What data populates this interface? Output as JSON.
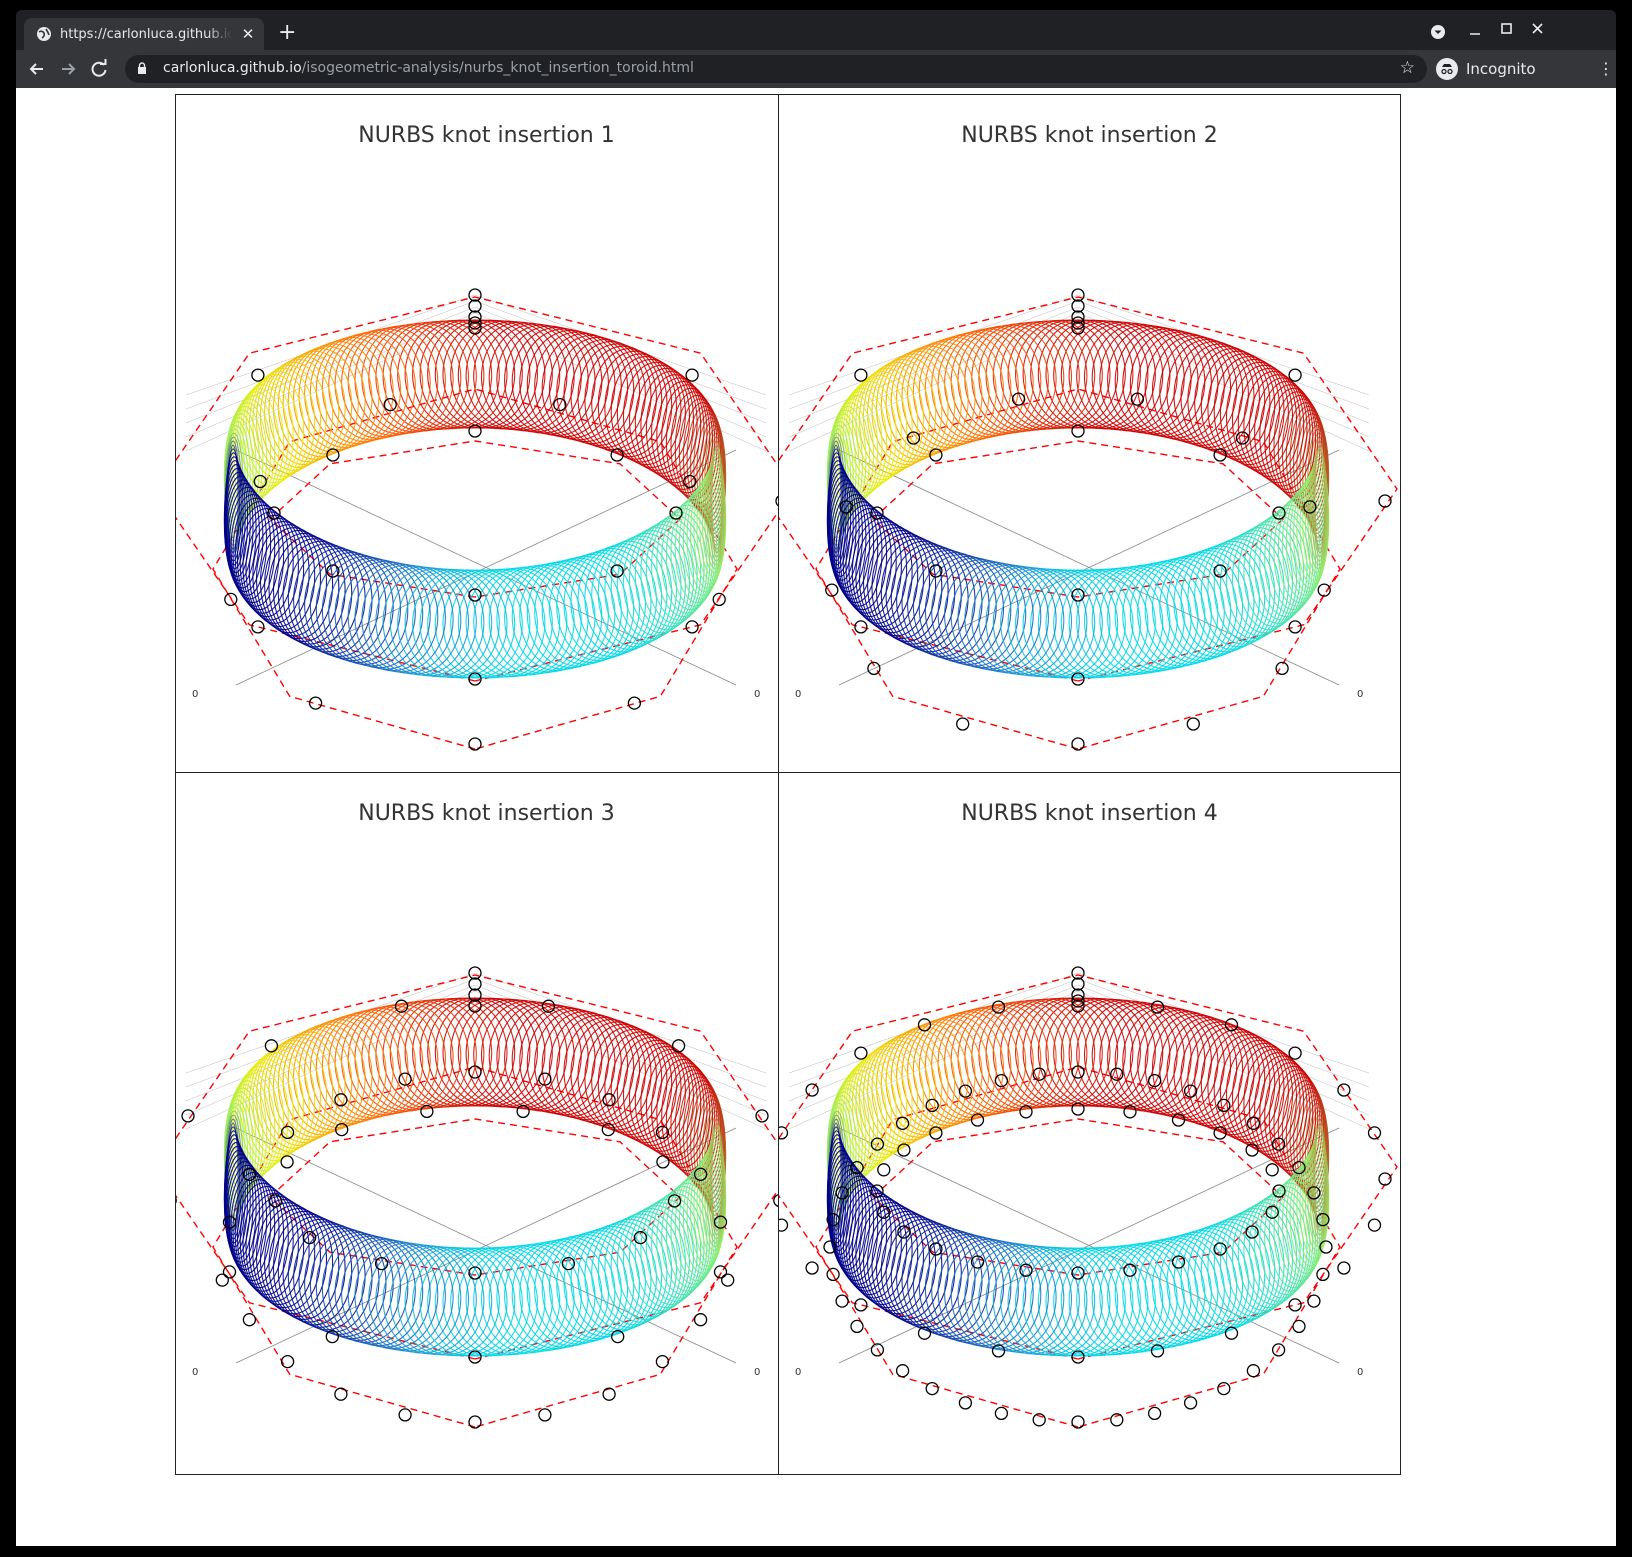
{
  "browser": {
    "tab_title": "https://carlonluca.github.io/isogeometric-analysis/nurbs_knot_insertion_toroid.html",
    "tab_close_icon": "close-icon",
    "new_tab_icon": "plus-icon",
    "url_host": "carlonluca.github.io",
    "url_path": "/isogeometric-analysis/nurbs_knot_insertion_toroid.html",
    "profile_label": "Incognito"
  },
  "panels": [
    {
      "title": "NURBS knot insertion 1",
      "axis_label_left": "0",
      "axis_label_right": "0"
    },
    {
      "title": "NURBS knot insertion 2",
      "axis_label_left": "0",
      "axis_label_right": "0"
    },
    {
      "title": "NURBS knot insertion 3",
      "axis_label_left": "0",
      "axis_label_right": "0"
    },
    {
      "title": "NURBS knot insertion 4",
      "axis_label_left": "0",
      "axis_label_right": "0"
    }
  ],
  "colors": {
    "red": "#cc0000",
    "orange": "#ff6600",
    "yellow": "#eeee00",
    "green": "#99ee66",
    "cyan": "#00d8e8",
    "blue": "#1e78c8",
    "navy": "#000088",
    "control_net": "#ff0000",
    "control_point": "#000000"
  }
}
